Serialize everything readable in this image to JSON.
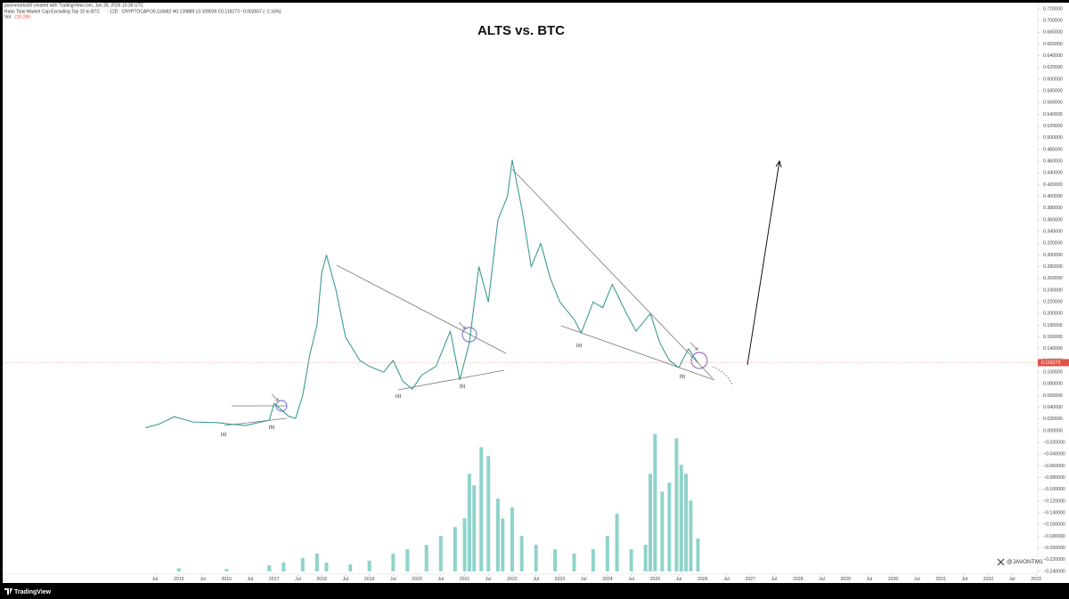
{
  "header": {
    "credit": "jasonmarks00 created with TradingView.com, Jan 26, 2026 10:39 UTC",
    "symbol_info": "· 12D · CRYPTOCAP",
    "ohlc": "O0.116682 H0.120889 L0.109026 C0.116273 −0.002657 (−2.16%)",
    "vol_value": "210.289"
  },
  "footer_brand": "TradingView",
  "watermark": "@JAVONTM1",
  "chart_data": {
    "type": "line",
    "title": "ALTS vs. BTC",
    "series": [
      {
        "name": "Ratio Total Market Cap Excluding Top 10 to BTC",
        "type": "line",
        "color": "#3d9c92",
        "x": [
          2014.3,
          2014.6,
          2014.9,
          2015.3,
          2015.8,
          2016.0,
          2016.4,
          2016.9,
          2017.0,
          2017.3,
          2017.45,
          2017.6,
          2017.75,
          2017.9,
          2018.0,
          2018.1,
          2018.3,
          2018.5,
          2018.8,
          2019.0,
          2019.3,
          2019.5,
          2019.7,
          2019.9,
          2020.1,
          2020.4,
          2020.7,
          2020.9,
          2021.1,
          2021.3,
          2021.5,
          2021.7,
          2021.9,
          2022.0,
          2022.2,
          2022.4,
          2022.6,
          2022.8,
          2023.0,
          2023.3,
          2023.45,
          2023.7,
          2023.9,
          2024.1,
          2024.4,
          2024.6,
          2024.9,
          2025.1,
          2025.3,
          2025.5,
          2025.7,
          2025.9
        ],
        "values": [
          0.005,
          0.012,
          0.024,
          0.015,
          0.014,
          0.012,
          0.009,
          0.018,
          0.047,
          0.025,
          0.021,
          0.06,
          0.13,
          0.18,
          0.27,
          0.3,
          0.24,
          0.16,
          0.12,
          0.11,
          0.1,
          0.12,
          0.085,
          0.071,
          0.095,
          0.11,
          0.17,
          0.087,
          0.15,
          0.28,
          0.22,
          0.36,
          0.4,
          0.462,
          0.38,
          0.28,
          0.32,
          0.26,
          0.22,
          0.19,
          0.167,
          0.22,
          0.21,
          0.25,
          0.2,
          0.17,
          0.2,
          0.15,
          0.12,
          0.108,
          0.14,
          0.116273
        ]
      },
      {
        "name": "Vol",
        "type": "bar",
        "axis": "y2",
        "color": "#8fd3ca",
        "x": [
          2015.0,
          2016.0,
          2016.9,
          2017.2,
          2017.6,
          2017.9,
          2018.1,
          2018.6,
          2019.0,
          2019.5,
          2019.8,
          2020.2,
          2020.5,
          2020.8,
          2021.0,
          2021.1,
          2021.2,
          2021.35,
          2021.5,
          2021.7,
          2021.8,
          2022.0,
          2022.2,
          2022.5,
          2022.9,
          2023.3,
          2023.7,
          2024.0,
          2024.2,
          2024.5,
          2024.8,
          2024.9,
          2025.0,
          2025.15,
          2025.3,
          2025.45,
          2025.55,
          2025.65,
          2025.75,
          2025.9
        ],
        "values": [
          20,
          15,
          40,
          57,
          85,
          114,
          57,
          45,
          68,
          114,
          142,
          170,
          227,
          284,
          340,
          625,
          551,
          795,
          738,
          466,
          340,
          409,
          227,
          170,
          142,
          114,
          142,
          227,
          369,
          142,
          170,
          625,
          880,
          511,
          568,
          852,
          682,
          625,
          454,
          210.289
        ]
      }
    ],
    "annotations": [
      "(a)",
      "(b)",
      "(a)",
      "(b)",
      "(a)",
      "(b)"
    ],
    "last_price": 0.116273,
    "xlim": [
      2011.3,
      2033.0
    ],
    "xticks": [
      {
        "value": 2014.5,
        "label": "Jul"
      },
      2015,
      {
        "value": 2015.5,
        "label": "Jul"
      },
      2016,
      {
        "value": 2016.5,
        "label": "Jul"
      },
      2017,
      {
        "value": 2017.5,
        "label": "Jul"
      },
      2018,
      {
        "value": 2018.5,
        "label": "Jul"
      },
      2019,
      {
        "value": 2019.5,
        "label": "Jul"
      },
      2020,
      {
        "value": 2020.5,
        "label": "Jul"
      },
      2021,
      {
        "value": 2021.5,
        "label": "Jul"
      },
      2022,
      {
        "value": 2022.5,
        "label": "Jul"
      },
      2023,
      {
        "value": 2023.5,
        "label": "Jul"
      },
      2024,
      {
        "value": 2024.5,
        "label": "Jul"
      },
      2025,
      {
        "value": 2025.5,
        "label": "Jul"
      },
      2026,
      {
        "value": 2026.5,
        "label": "Jul"
      },
      2027,
      {
        "value": 2027.5,
        "label": "Jul"
      },
      2028,
      {
        "value": 2028.5,
        "label": "Jul"
      },
      2029,
      {
        "value": 2029.5,
        "label": "Jul"
      },
      2030,
      {
        "value": 2030.5,
        "label": "Jul"
      },
      2031,
      {
        "value": 2031.5,
        "label": "Jul"
      },
      2032,
      {
        "value": 2032.5,
        "label": "Jul"
      },
      2033
    ],
    "ylim": [
      -0.24,
      0.72
    ],
    "y2lim": [
      0,
      3600
    ],
    "yticks": [
      {
        "value": 0.72,
        "label": "0.720000"
      },
      {
        "value": 0.7,
        "label": "0.700000"
      },
      {
        "value": 0.68,
        "label": "0.680000"
      },
      {
        "value": 0.66,
        "label": "0.660000"
      },
      {
        "value": 0.64,
        "label": "0.640000"
      },
      {
        "value": 0.62,
        "label": "0.620000"
      },
      {
        "value": 0.6,
        "label": "0.600000"
      },
      {
        "value": 0.58,
        "label": "0.580000"
      },
      {
        "value": 0.56,
        "label": "0.560000"
      },
      {
        "value": 0.54,
        "label": "0.540000"
      },
      {
        "value": 0.52,
        "label": "0.520000"
      },
      {
        "value": 0.5,
        "label": "0.500000"
      },
      {
        "value": 0.48,
        "label": "0.480000"
      },
      {
        "value": 0.46,
        "label": "0.460000"
      },
      {
        "value": 0.44,
        "label": "0.440000"
      },
      {
        "value": 0.42,
        "label": "0.420000"
      },
      {
        "value": 0.4,
        "label": "0.400000"
      },
      {
        "value": 0.38,
        "label": "0.380000"
      },
      {
        "value": 0.36,
        "label": "0.360000"
      },
      {
        "value": 0.34,
        "label": "0.340000"
      },
      {
        "value": 0.32,
        "label": "0.320000"
      },
      {
        "value": 0.3,
        "label": "0.300000"
      },
      {
        "value": 0.28,
        "label": "0.280000"
      },
      {
        "value": 0.26,
        "label": "0.260000"
      },
      {
        "value": 0.24,
        "label": "0.240000"
      },
      {
        "value": 0.22,
        "label": "0.220000"
      },
      {
        "value": 0.2,
        "label": "0.200000"
      },
      {
        "value": 0.18,
        "label": "0.180000"
      },
      {
        "value": 0.16,
        "label": "0.160000"
      },
      {
        "value": 0.14,
        "label": "0.140000"
      },
      {
        "value": 0.12,
        "label": "0.120000"
      },
      {
        "value": 0.1,
        "label": "0.100000"
      },
      {
        "value": 0.08,
        "label": "0.080000"
      },
      {
        "value": 0.06,
        "label": "0.060000"
      },
      {
        "value": 0.04,
        "label": "0.040000"
      },
      {
        "value": 0.02,
        "label": "0.020000"
      },
      {
        "value": 0,
        "label": "0.000000"
      },
      {
        "value": -0.02,
        "label": "−0.020000"
      },
      {
        "value": -0.04,
        "label": "−0.040000"
      },
      {
        "value": -0.06,
        "label": "−0.060000"
      },
      {
        "value": -0.08,
        "label": "−0.080000"
      },
      {
        "value": -0.1,
        "label": "−0.100000"
      },
      {
        "value": -0.12,
        "label": "−0.120000"
      },
      {
        "value": -0.14,
        "label": "−0.140000"
      },
      {
        "value": -0.16,
        "label": "−0.160000"
      },
      {
        "value": -0.18,
        "label": "−0.180000"
      },
      {
        "value": -0.2,
        "label": "−0.200000"
      },
      {
        "value": -0.22,
        "label": "−0.220000"
      },
      {
        "value": -0.24,
        "label": "−0.240000"
      }
    ],
    "grid": false
  }
}
